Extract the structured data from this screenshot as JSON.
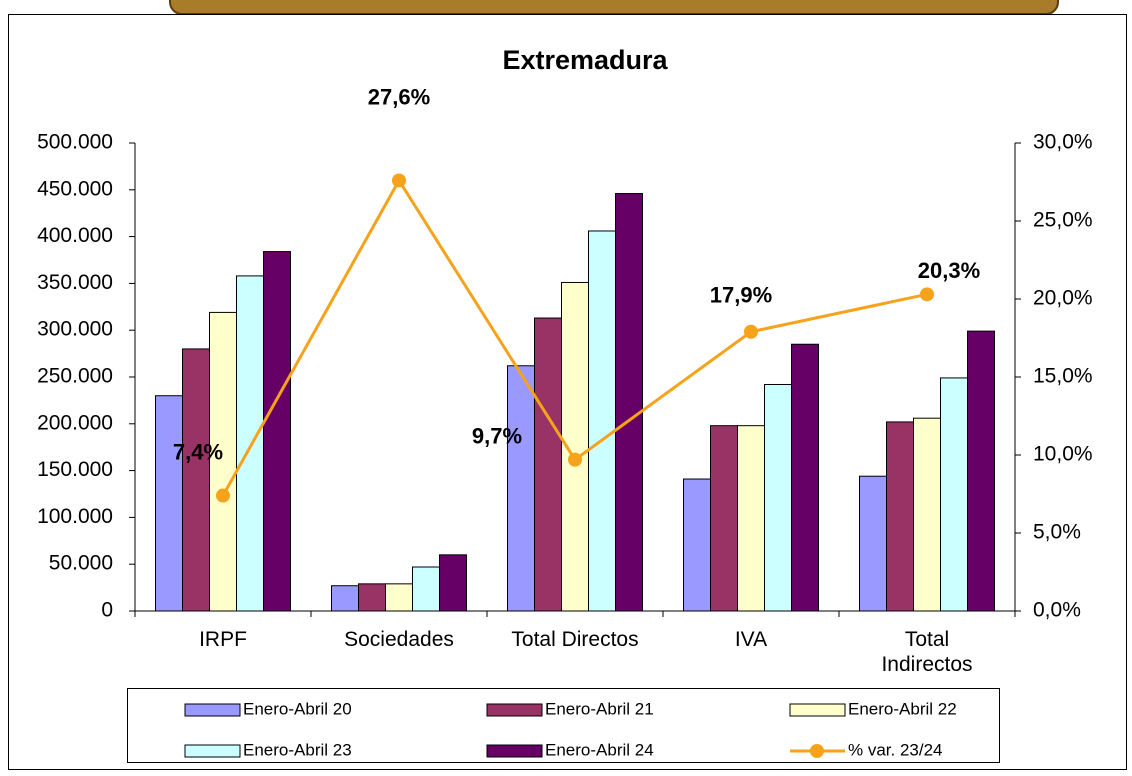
{
  "chart_data": {
    "type": "bar",
    "title": "Extremadura",
    "categories": [
      "IRPF",
      "Sociedades",
      "Total Directos",
      "IVA",
      "Total Indirectos"
    ],
    "series": [
      {
        "name": "Enero-Abril 20",
        "color": "#9999ff",
        "values": [
          230000,
          27000,
          262000,
          141000,
          144000
        ]
      },
      {
        "name": "Enero-Abril 21",
        "color": "#993366",
        "values": [
          280000,
          29000,
          313000,
          198000,
          202000
        ]
      },
      {
        "name": "Enero-Abril 22",
        "color": "#ffffcc",
        "values": [
          319000,
          29000,
          351000,
          198000,
          206000
        ]
      },
      {
        "name": "Enero-Abril 23",
        "color": "#ccffff",
        "values": [
          358000,
          47000,
          406000,
          242000,
          249000
        ]
      },
      {
        "name": "Enero-Abril 24",
        "color": "#660066",
        "values": [
          384000,
          60000,
          446000,
          285000,
          299000
        ]
      },
      {
        "name": "% var. 23/24",
        "type": "line",
        "axis": "y2",
        "color": "#f7a21b",
        "values": [
          7.4,
          27.6,
          9.7,
          17.9,
          20.3
        ],
        "value_labels": [
          "7,4%",
          "27,6%",
          "9,7%",
          "17,9%",
          "20,3%"
        ]
      }
    ],
    "ylim": [
      0,
      500000
    ],
    "yticks": [
      0,
      {
        "value": 50000,
        "label": "50.000"
      },
      {
        "value": 100000,
        "label": "100.000"
      },
      {
        "value": 150000,
        "label": "150.000"
      },
      {
        "value": 200000,
        "label": "200.000"
      },
      {
        "value": 250000,
        "label": "250.000"
      },
      {
        "value": 300000,
        "label": "300.000"
      },
      {
        "value": 350000,
        "label": "350.000"
      },
      {
        "value": 400000,
        "label": "400.000"
      },
      {
        "value": 450000,
        "label": "450.000"
      },
      {
        "value": 500000,
        "label": "500.000"
      }
    ],
    "y2lim": [
      0,
      30
    ],
    "y2ticks": [
      {
        "value": 0,
        "label": "0,0%"
      },
      {
        "value": 5,
        "label": "5,0%"
      },
      {
        "value": 10,
        "label": "10,0%"
      },
      {
        "value": 15,
        "label": "15,0%"
      },
      {
        "value": 20,
        "label": "20,0%"
      },
      {
        "value": 25,
        "label": "25,0%"
      },
      {
        "value": 30,
        "label": "30,0%"
      }
    ],
    "grid": false,
    "legend": "bottom"
  }
}
